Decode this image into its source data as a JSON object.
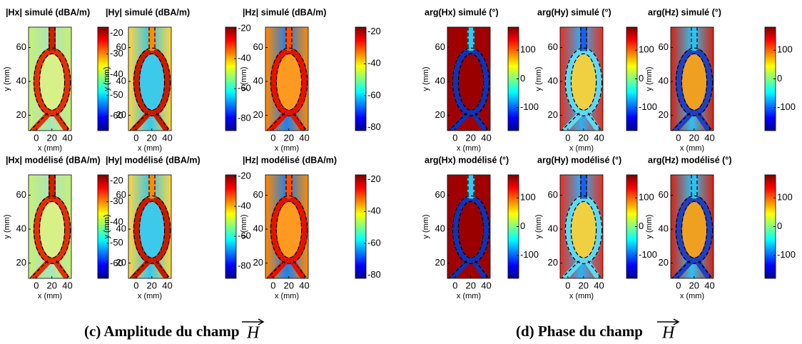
{
  "chart_data": [
    {
      "type": "heatmap",
      "title": "|Hx| simulé (dBA/m)",
      "xlabel": "x (mm)",
      "ylabel": "y (mm)",
      "xlim": [
        -10,
        45
      ],
      "ylim": [
        11,
        72
      ],
      "xticks": [
        0,
        20,
        40
      ],
      "yticks": [
        20,
        40,
        60
      ],
      "clim": [
        -67,
        -17
      ],
      "cticks": [
        -20,
        -30,
        -40,
        -50,
        -60
      ]
    },
    {
      "type": "heatmap",
      "title": "|Hy| simulé (dBA/m)",
      "xlabel": "x (mm)",
      "ylabel": "y (mm)",
      "xlim": [
        -10,
        45
      ],
      "ylim": [
        11,
        72
      ],
      "xticks": [
        0,
        20,
        40
      ],
      "yticks": [
        20,
        40,
        60
      ],
      "clim": [
        -88,
        -19
      ],
      "cticks": [
        -20,
        -40,
        -60,
        -80
      ]
    },
    {
      "type": "heatmap",
      "title": "|Hz| simulé (dBA/m)",
      "xlabel": "x (mm)",
      "ylabel": "y (mm)",
      "xlim": [
        -10,
        45
      ],
      "ylim": [
        11,
        72
      ],
      "xticks": [
        0,
        20,
        40
      ],
      "yticks": [
        20,
        40,
        60
      ],
      "clim": [
        -82,
        -17
      ],
      "cticks": [
        -20,
        -40,
        -60,
        -80
      ]
    },
    {
      "type": "heatmap",
      "title": "arg(Hx) simulé (°)",
      "xlabel": "x (mm)",
      "ylabel": "y (mm)",
      "xlim": [
        -10,
        45
      ],
      "ylim": [
        11,
        72
      ],
      "xticks": [
        0,
        20,
        40
      ],
      "yticks": [
        20,
        40,
        60
      ],
      "clim": [
        -180,
        180
      ],
      "cticks": [
        100,
        0,
        -100
      ]
    },
    {
      "type": "heatmap",
      "title": "arg(Hy) simulé (°)",
      "xlabel": "x (mm)",
      "ylabel": "y (mm)",
      "xlim": [
        -10,
        45
      ],
      "ylim": [
        11,
        72
      ],
      "xticks": [
        0,
        20,
        40
      ],
      "yticks": [
        20,
        40,
        60
      ],
      "clim": [
        -180,
        180
      ],
      "cticks": [
        100,
        0,
        -100
      ]
    },
    {
      "type": "heatmap",
      "title": "arg(Hz) simulé (°)",
      "xlabel": "x (mm)",
      "ylabel": "y (mm)",
      "xlim": [
        -10,
        45
      ],
      "ylim": [
        11,
        72
      ],
      "xticks": [
        0,
        20,
        40
      ],
      "yticks": [
        20,
        40,
        60
      ],
      "clim": [
        -180,
        180
      ],
      "cticks": [
        100,
        0,
        -100
      ]
    },
    {
      "type": "heatmap",
      "title": "|Hx| modélisé (dBA/m)",
      "xlabel": "x (mm)",
      "ylabel": "y (mm)",
      "xlim": [
        -10,
        45
      ],
      "ylim": [
        11,
        72
      ],
      "xticks": [
        0,
        20,
        40
      ],
      "yticks": [
        20,
        40,
        60
      ],
      "clim": [
        -67,
        -17
      ],
      "cticks": [
        -20,
        -30,
        -40,
        -50,
        -60
      ]
    },
    {
      "type": "heatmap",
      "title": "|Hy| modélisé (dBA/m)",
      "xlabel": "x (mm)",
      "ylabel": "y (mm)",
      "xlim": [
        -10,
        45
      ],
      "ylim": [
        11,
        72
      ],
      "xticks": [
        0,
        20,
        40
      ],
      "yticks": [
        20,
        40,
        60
      ],
      "clim": [
        -88,
        -19
      ],
      "cticks": [
        -20,
        -40,
        -60,
        -80
      ]
    },
    {
      "type": "heatmap",
      "title": "|Hz| modélisé (dBA/m)",
      "xlabel": "x (mm)",
      "ylabel": "y (mm)",
      "xlim": [
        -10,
        45
      ],
      "ylim": [
        11,
        72
      ],
      "xticks": [
        0,
        20,
        40
      ],
      "yticks": [
        20,
        40,
        60
      ],
      "clim": [
        -82,
        -17
      ],
      "cticks": [
        -20,
        -40,
        -60,
        -80
      ]
    },
    {
      "type": "heatmap",
      "title": "arg(Hx) modélisé (°)",
      "xlabel": "x (mm)",
      "ylabel": "y (mm)",
      "xlim": [
        -10,
        45
      ],
      "ylim": [
        11,
        72
      ],
      "xticks": [
        0,
        20,
        40
      ],
      "yticks": [
        20,
        40,
        60
      ],
      "clim": [
        -180,
        180
      ],
      "cticks": [
        100,
        0,
        -100
      ]
    },
    {
      "type": "heatmap",
      "title": "arg(Hy) modélisé (°)",
      "xlabel": "x (mm)",
      "ylabel": "y (mm)",
      "xlim": [
        -10,
        45
      ],
      "ylim": [
        11,
        72
      ],
      "xticks": [
        0,
        20,
        40
      ],
      "yticks": [
        20,
        40,
        60
      ],
      "clim": [
        -180,
        180
      ],
      "cticks": [
        100,
        0,
        -100
      ]
    },
    {
      "type": "heatmap",
      "title": "arg(Hz) modélisé (°)",
      "xlabel": "x (mm)",
      "ylabel": "y (mm)",
      "xlim": [
        -10,
        45
      ],
      "ylim": [
        11,
        72
      ],
      "xticks": [
        0,
        20,
        40
      ],
      "yticks": [
        20,
        40,
        60
      ],
      "clim": [
        -180,
        180
      ],
      "cticks": [
        100,
        0,
        -100
      ]
    }
  ],
  "captions": [
    {
      "text": "(c) Amplitude du champ",
      "symbol": "H"
    },
    {
      "text": "(d) Phase du champ",
      "symbol": "H"
    }
  ]
}
